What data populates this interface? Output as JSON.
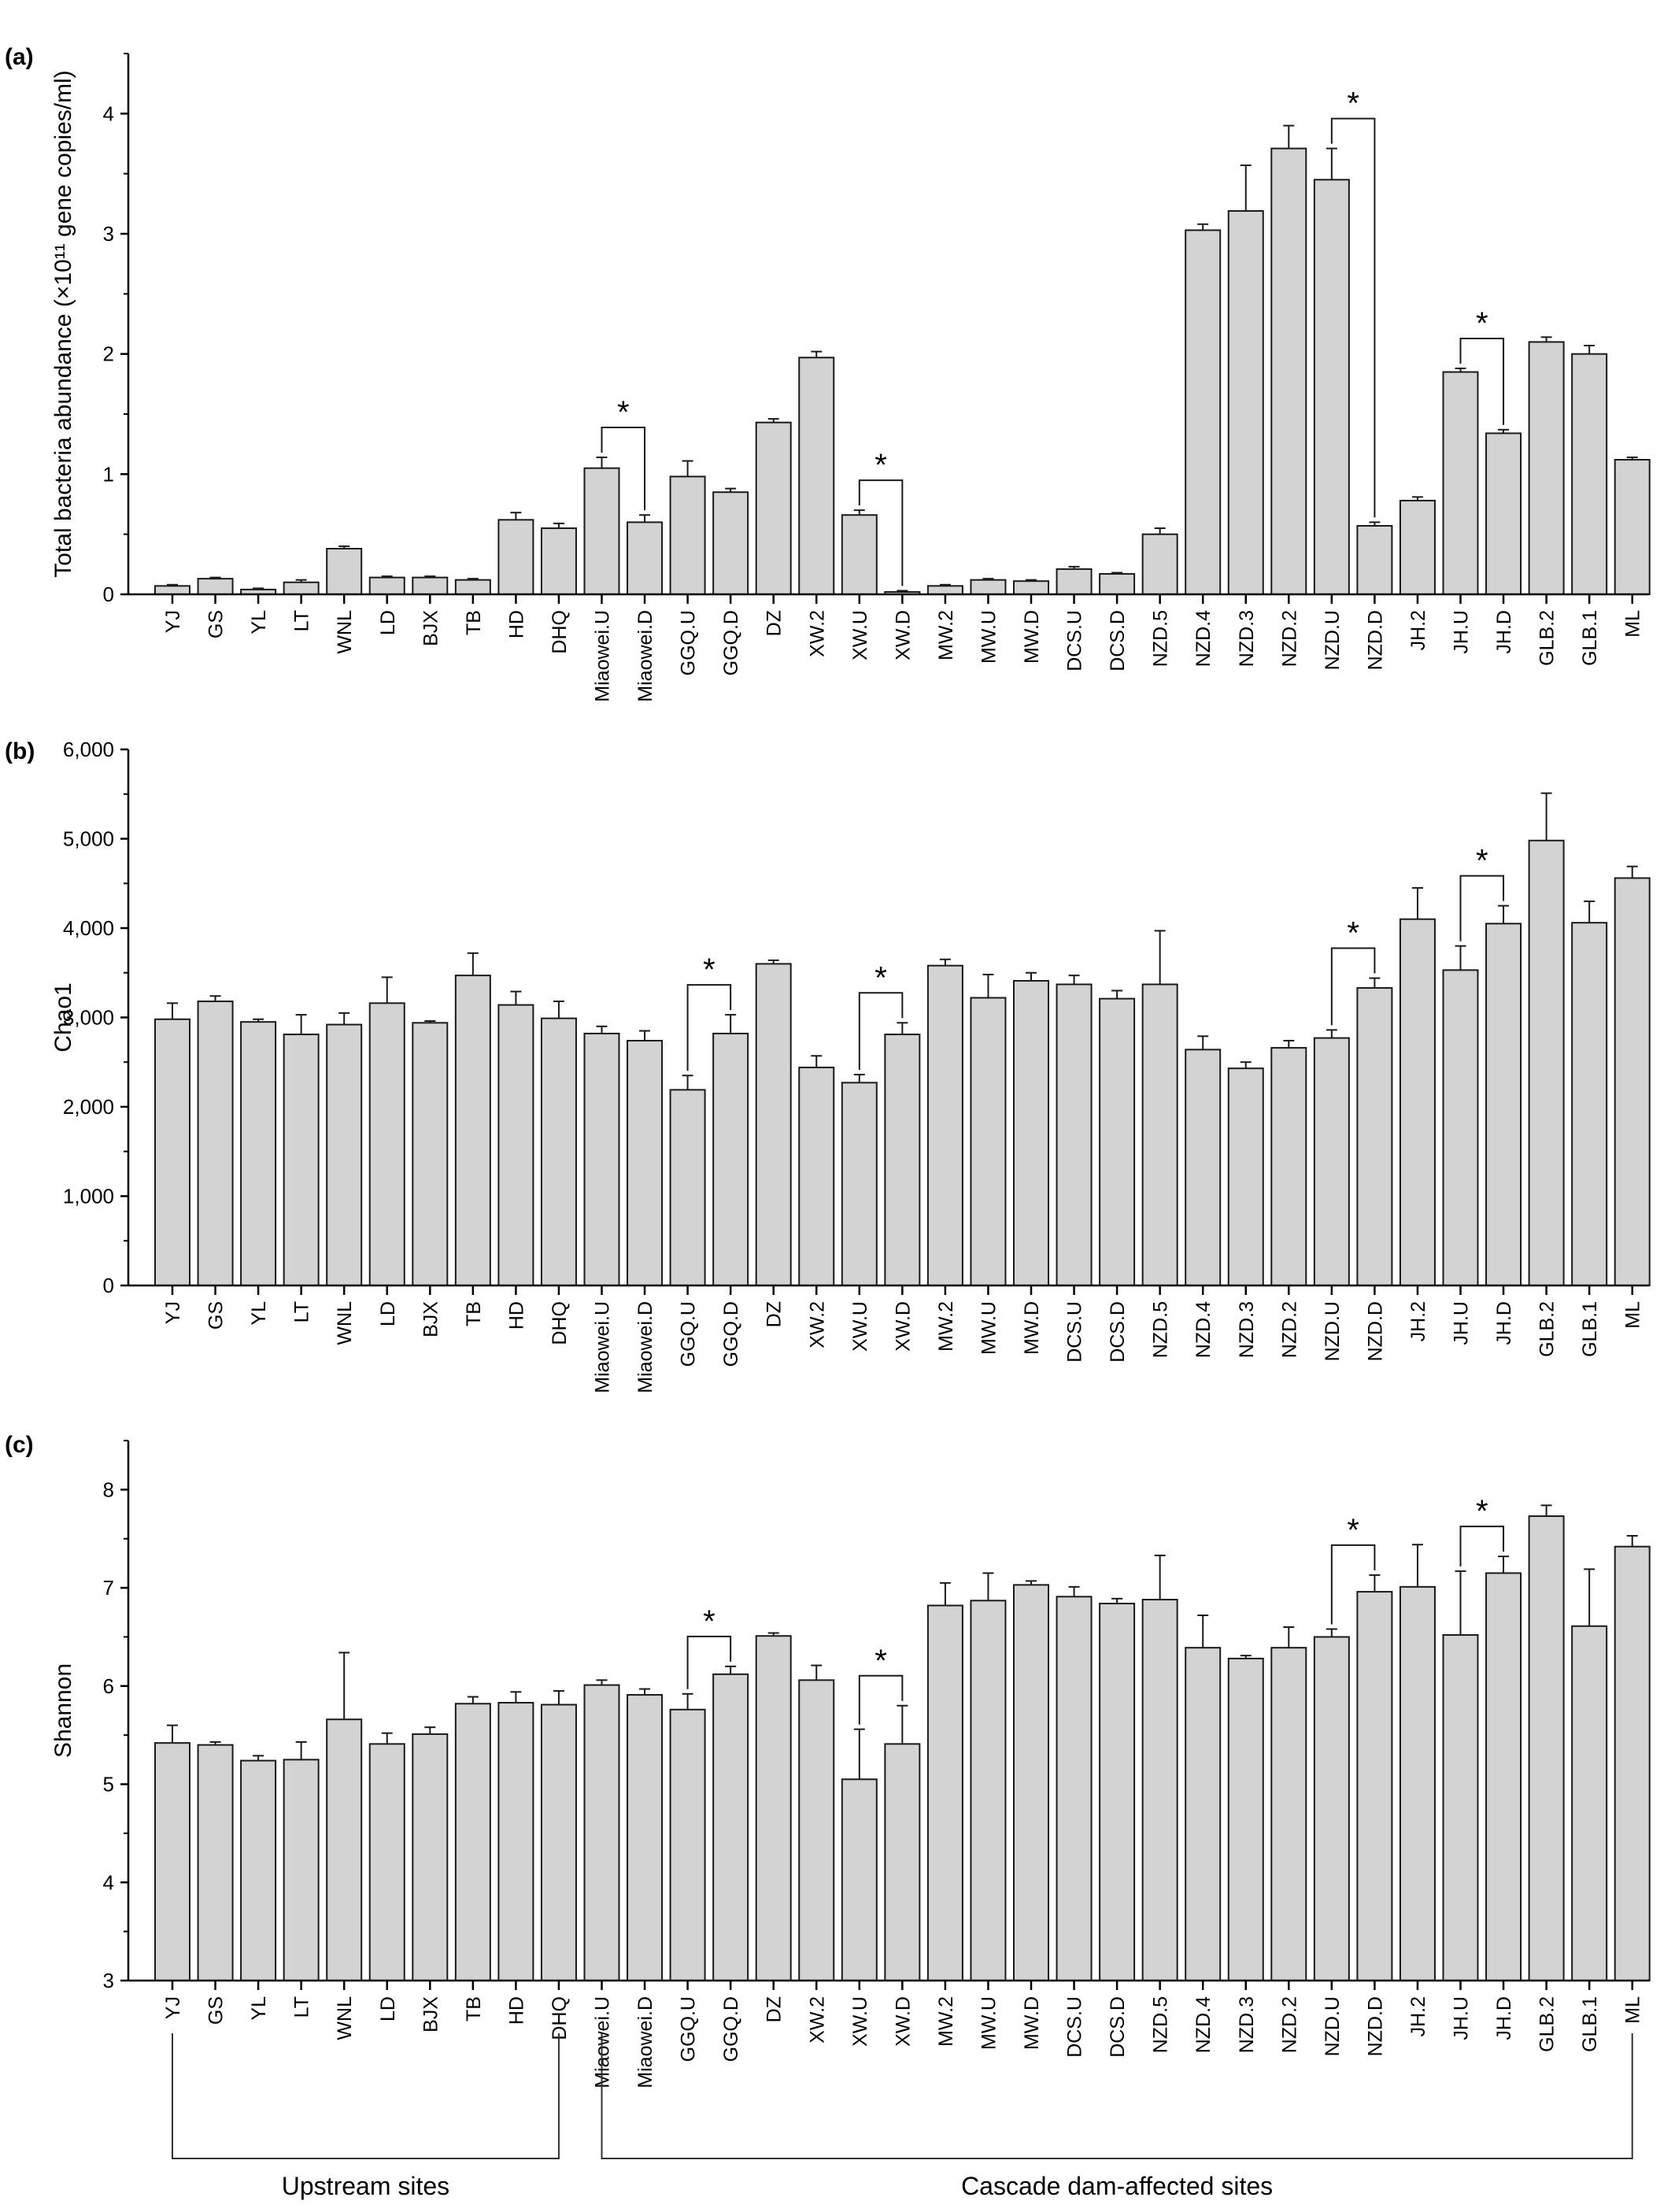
{
  "figure": {
    "site_groups": [
      {
        "label": "Upstream sites",
        "from": "YJ",
        "to": "DHQ"
      },
      {
        "label": "Cascade dam-affected sites",
        "from": "Miaowei.U",
        "to": "ML"
      }
    ]
  },
  "chart_data": [
    {
      "type": "bar",
      "panel_label": "(a)",
      "ylabel": "Total bacteria abundance (×10¹¹ gene copies/ml)",
      "ylim": [
        0,
        4.5
      ],
      "yticks": [
        0,
        1,
        2,
        3,
        4
      ],
      "ytick_labels": [
        "0",
        "1",
        "2",
        "3",
        "4"
      ],
      "categories": [
        "YJ",
        "GS",
        "YL",
        "LT",
        "WNL",
        "LD",
        "BJX",
        "TB",
        "HD",
        "DHQ",
        "Miaowei.U",
        "Miaowei.D",
        "GGQ.U",
        "GGQ.D",
        "DZ",
        "XW.2",
        "XW.U",
        "XW.D",
        "MW.2",
        "MW.U",
        "MW.D",
        "DCS.U",
        "DCS.D",
        "NZD.5",
        "NZD.4",
        "NZD.3",
        "NZD.2",
        "NZD.U",
        "NZD.D",
        "JH.2",
        "JH.U",
        "JH.D",
        "GLB.2",
        "GLB.1",
        "ML"
      ],
      "values": [
        0.07,
        0.13,
        0.04,
        0.1,
        0.38,
        0.14,
        0.14,
        0.12,
        0.62,
        0.55,
        1.05,
        0.6,
        0.98,
        0.85,
        1.43,
        1.97,
        0.66,
        0.02,
        0.07,
        0.12,
        0.11,
        0.21,
        0.17,
        0.5,
        3.03,
        3.19,
        3.71,
        3.45,
        0.57,
        0.78,
        1.85,
        1.34,
        2.1,
        2.0,
        1.12
      ],
      "errors": [
        0.01,
        0.01,
        0.01,
        0.02,
        0.02,
        0.01,
        0.01,
        0.01,
        0.06,
        0.04,
        0.09,
        0.06,
        0.13,
        0.03,
        0.03,
        0.05,
        0.04,
        0.01,
        0.01,
        0.01,
        0.01,
        0.02,
        0.01,
        0.05,
        0.05,
        0.38,
        0.19,
        0.26,
        0.03,
        0.03,
        0.03,
        0.03,
        0.04,
        0.07,
        0.02
      ],
      "significance": [
        {
          "pair": [
            "Miaowei.U",
            "Miaowei.D"
          ],
          "label": "*"
        },
        {
          "pair": [
            "XW.U",
            "XW.D"
          ],
          "label": "*"
        },
        {
          "pair": [
            "NZD.U",
            "NZD.D"
          ],
          "label": "*"
        },
        {
          "pair": [
            "JH.U",
            "JH.D"
          ],
          "label": "*"
        }
      ]
    },
    {
      "type": "bar",
      "panel_label": "(b)",
      "ylabel": "Chao1",
      "ylim": [
        0,
        6000
      ],
      "yticks": [
        0,
        1000,
        2000,
        3000,
        4000,
        5000,
        6000
      ],
      "ytick_labels": [
        "0",
        "1,000",
        "2,000",
        "3,000",
        "4,000",
        "5,000",
        "6,000"
      ],
      "categories": [
        "YJ",
        "GS",
        "YL",
        "LT",
        "WNL",
        "LD",
        "BJX",
        "TB",
        "HD",
        "DHQ",
        "Miaowei.U",
        "Miaowei.D",
        "GGQ.U",
        "GGQ.D",
        "DZ",
        "XW.2",
        "XW.U",
        "XW.D",
        "MW.2",
        "MW.U",
        "MW.D",
        "DCS.U",
        "DCS.D",
        "NZD.5",
        "NZD.4",
        "NZD.3",
        "NZD.2",
        "NZD.U",
        "NZD.D",
        "JH.2",
        "JH.U",
        "JH.D",
        "GLB.2",
        "GLB.1",
        "ML"
      ],
      "values": [
        2980,
        3180,
        2950,
        2810,
        2920,
        3160,
        2940,
        3470,
        3140,
        2990,
        2820,
        2740,
        2190,
        2820,
        3600,
        2440,
        2270,
        2810,
        3580,
        3220,
        3410,
        3370,
        3210,
        3370,
        2640,
        2430,
        2660,
        2770,
        3330,
        4100,
        3530,
        4050,
        4980,
        4060,
        4560
      ],
      "errors": [
        180,
        60,
        30,
        220,
        130,
        290,
        20,
        250,
        150,
        190,
        80,
        110,
        160,
        210,
        40,
        130,
        90,
        130,
        70,
        260,
        90,
        100,
        90,
        600,
        150,
        70,
        80,
        90,
        110,
        350,
        270,
        200,
        530,
        240,
        130
      ],
      "significance": [
        {
          "pair": [
            "GGQ.U",
            "GGQ.D"
          ],
          "label": "*"
        },
        {
          "pair": [
            "XW.U",
            "XW.D"
          ],
          "label": "*"
        },
        {
          "pair": [
            "NZD.U",
            "NZD.D"
          ],
          "label": "*"
        },
        {
          "pair": [
            "JH.U",
            "JH.D"
          ],
          "label": "*"
        }
      ]
    },
    {
      "type": "bar",
      "panel_label": "(c)",
      "ylabel": "Shannon",
      "ylim": [
        3,
        8.5
      ],
      "yticks": [
        3,
        4,
        5,
        6,
        7,
        8
      ],
      "ytick_labels": [
        "3",
        "4",
        "5",
        "6",
        "7",
        "8"
      ],
      "categories": [
        "YJ",
        "GS",
        "YL",
        "LT",
        "WNL",
        "LD",
        "BJX",
        "TB",
        "HD",
        "DHQ",
        "Miaowei.U",
        "Miaowei.D",
        "GGQ.U",
        "GGQ.D",
        "DZ",
        "XW.2",
        "XW.U",
        "XW.D",
        "MW.2",
        "MW.U",
        "MW.D",
        "DCS.U",
        "DCS.D",
        "NZD.5",
        "NZD.4",
        "NZD.3",
        "NZD.2",
        "NZD.U",
        "NZD.D",
        "JH.2",
        "JH.U",
        "JH.D",
        "GLB.2",
        "GLB.1",
        "ML"
      ],
      "values": [
        5.42,
        5.4,
        5.24,
        5.25,
        5.66,
        5.41,
        5.51,
        5.82,
        5.83,
        5.81,
        6.01,
        5.91,
        5.76,
        6.12,
        6.51,
        6.06,
        5.05,
        5.41,
        6.82,
        6.87,
        7.03,
        6.91,
        6.84,
        6.88,
        6.39,
        6.28,
        6.39,
        6.5,
        6.96,
        7.01,
        6.52,
        7.15,
        7.73,
        6.61,
        7.42
      ],
      "errors": [
        0.18,
        0.03,
        0.05,
        0.18,
        0.68,
        0.11,
        0.07,
        0.07,
        0.11,
        0.14,
        0.05,
        0.06,
        0.16,
        0.08,
        0.03,
        0.15,
        0.51,
        0.39,
        0.23,
        0.28,
        0.04,
        0.1,
        0.05,
        0.45,
        0.33,
        0.03,
        0.21,
        0.08,
        0.17,
        0.43,
        0.65,
        0.17,
        0.11,
        0.58,
        0.11
      ],
      "significance": [
        {
          "pair": [
            "GGQ.U",
            "GGQ.D"
          ],
          "label": "*"
        },
        {
          "pair": [
            "XW.U",
            "XW.D"
          ],
          "label": "*"
        },
        {
          "pair": [
            "NZD.U",
            "NZD.D"
          ],
          "label": "*"
        },
        {
          "pair": [
            "JH.U",
            "JH.D"
          ],
          "label": "*"
        }
      ]
    }
  ]
}
